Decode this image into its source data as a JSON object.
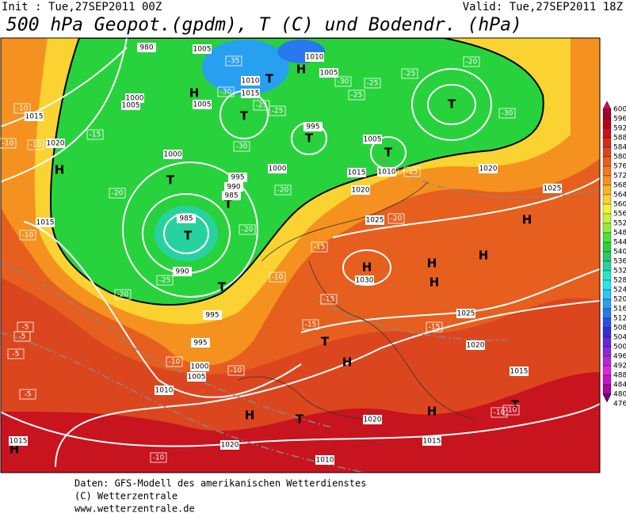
{
  "header": {
    "init": "Init : Tue,27SEP2011 00Z",
    "valid": "Valid: Tue,27SEP2011 18Z",
    "title": "500 hPa Geopot.(gpdm), T (C) und Bodendr. (hPa)"
  },
  "map": {
    "markers": [
      "H",
      "H",
      "H",
      "H",
      "H",
      "H",
      "H",
      "H",
      "H",
      "H",
      "H",
      "H",
      "T",
      "T",
      "T",
      "T",
      "T",
      "T",
      "T",
      "T",
      "T",
      "T",
      "T",
      "T"
    ],
    "isobars": [
      "1015",
      "1020",
      "1015",
      "1000",
      "995",
      "990",
      "985",
      "985",
      "990",
      "995",
      "995",
      "1000",
      "1005",
      "1010",
      "980",
      "1005",
      "1000",
      "1005",
      "1015",
      "1005",
      "1010",
      "1000",
      "995",
      "1005",
      "1005",
      "1010",
      "1020",
      "1015",
      "1020",
      "1010",
      "1025",
      "1025",
      "1030",
      "1025",
      "1020",
      "1015",
      "1020",
      "1015",
      "1010",
      "1020",
      "1015"
    ],
    "temps": [
      "-10",
      "-10",
      "-15",
      "-10",
      "-20",
      "-25",
      "-30",
      "-25",
      "-20",
      "-25",
      "-30",
      "-35",
      "-25",
      "-30",
      "-25",
      "-20",
      "-20",
      "-15",
      "-15",
      "-15",
      "-10",
      "-10",
      "-5",
      "-5",
      "-5",
      "-5",
      "-10",
      "-15",
      "-10",
      "-20",
      "-25",
      "-30",
      "-25",
      "-20",
      "-10",
      "-10",
      "-10"
    ]
  },
  "colorbar": {
    "labels": [
      "600",
      "596",
      "592",
      "588",
      "584",
      "580",
      "576",
      "572",
      "568",
      "564",
      "560",
      "556",
      "552",
      "548",
      "544",
      "540",
      "536",
      "532",
      "528",
      "524",
      "520",
      "516",
      "512",
      "508",
      "504",
      "500",
      "496",
      "492",
      "488",
      "484",
      "480",
      "476"
    ],
    "colors": [
      "#d8006a",
      "#a00030",
      "#b4001c",
      "#c8141e",
      "#d22d1e",
      "#dc461e",
      "#e65f1e",
      "#f0781e",
      "#f5911e",
      "#fab428",
      "#fcd232",
      "#f5f03c",
      "#c8f03c",
      "#96eb3c",
      "#50e03c",
      "#28d23c",
      "#28c86e",
      "#28d2a0",
      "#28e6c8",
      "#28e6f0",
      "#28c8f0",
      "#28a0f0",
      "#2878f0",
      "#2850e6",
      "#3c28dc",
      "#6428dc",
      "#8c28dc",
      "#b428dc",
      "#dc28dc",
      "#c814c8",
      "#a00aa0",
      "#780078"
    ]
  },
  "footer": [
    "Daten: GFS-Modell des amerikanischen Wetterdienstes",
    "(C) Wetterzentrale",
    "www.wetterzentrale.de"
  ]
}
